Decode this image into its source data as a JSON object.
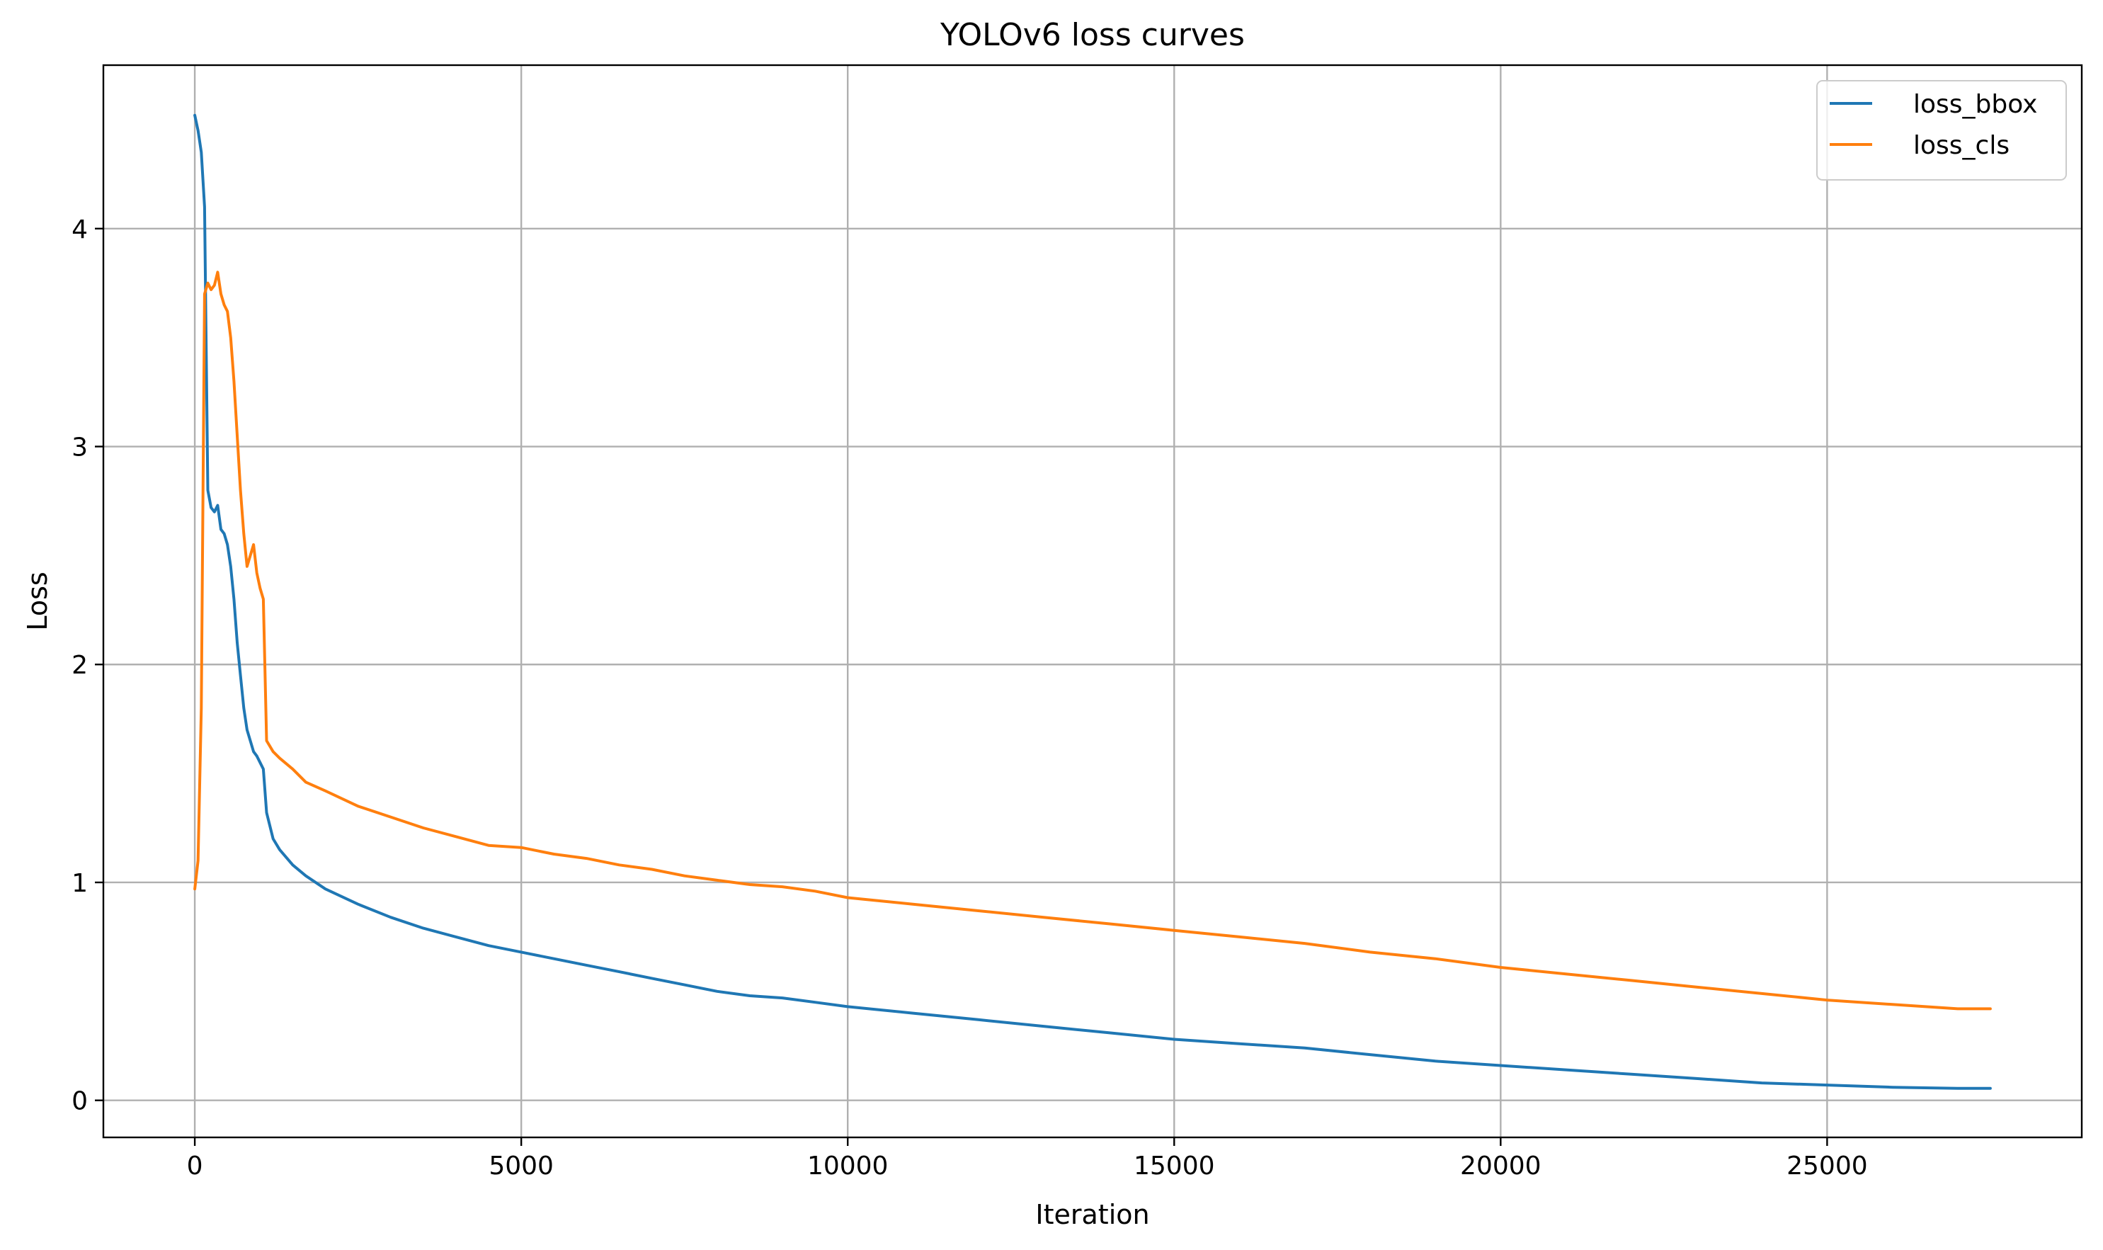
{
  "chart_data": {
    "type": "line",
    "title": "YOLOv6 loss curves",
    "xlabel": "Iteration",
    "ylabel": "Loss",
    "xlim": [
      -1400,
      28900
    ],
    "ylim": [
      -0.17,
      4.75
    ],
    "xticks": [
      0,
      5000,
      10000,
      15000,
      20000,
      25000
    ],
    "xtick_labels": [
      "0",
      "5000",
      "10000",
      "15000",
      "20000",
      "25000"
    ],
    "yticks": [
      0,
      1,
      2,
      3,
      4
    ],
    "ytick_labels": [
      "0",
      "1",
      "2",
      "3",
      "4"
    ],
    "grid": true,
    "legend_position": "top-right",
    "series": [
      {
        "name": "loss_bbox",
        "color": "#1f77b4",
        "x": [
          0,
          50,
          100,
          150,
          200,
          250,
          300,
          350,
          400,
          450,
          500,
          550,
          600,
          650,
          700,
          750,
          800,
          850,
          900,
          950,
          1000,
          1050,
          1100,
          1200,
          1300,
          1500,
          1700,
          2000,
          2500,
          3000,
          3500,
          4000,
          4500,
          5000,
          5500,
          6000,
          6500,
          7000,
          7500,
          8000,
          8500,
          9000,
          9500,
          10000,
          11000,
          12000,
          13000,
          14000,
          15000,
          16000,
          17000,
          18000,
          19000,
          20000,
          21000,
          22000,
          23000,
          24000,
          25000,
          26000,
          27000,
          27500
        ],
        "y": [
          4.52,
          4.45,
          4.35,
          4.1,
          2.8,
          2.72,
          2.7,
          2.73,
          2.62,
          2.6,
          2.55,
          2.45,
          2.3,
          2.1,
          1.95,
          1.8,
          1.7,
          1.65,
          1.6,
          1.58,
          1.55,
          1.52,
          1.32,
          1.2,
          1.15,
          1.08,
          1.03,
          0.97,
          0.9,
          0.84,
          0.79,
          0.75,
          0.71,
          0.68,
          0.65,
          0.62,
          0.59,
          0.56,
          0.53,
          0.5,
          0.48,
          0.47,
          0.45,
          0.43,
          0.4,
          0.37,
          0.34,
          0.31,
          0.28,
          0.26,
          0.24,
          0.21,
          0.18,
          0.16,
          0.14,
          0.12,
          0.1,
          0.08,
          0.07,
          0.06,
          0.055,
          0.055
        ]
      },
      {
        "name": "loss_cls",
        "color": "#ff7f0e",
        "x": [
          0,
          50,
          100,
          150,
          200,
          250,
          300,
          350,
          400,
          450,
          500,
          550,
          600,
          650,
          700,
          750,
          800,
          850,
          900,
          950,
          1000,
          1050,
          1100,
          1200,
          1300,
          1500,
          1700,
          2000,
          2500,
          3000,
          3500,
          4000,
          4500,
          5000,
          5500,
          6000,
          6500,
          7000,
          7500,
          8000,
          8500,
          9000,
          9500,
          10000,
          11000,
          12000,
          13000,
          14000,
          15000,
          16000,
          17000,
          18000,
          19000,
          20000,
          21000,
          22000,
          23000,
          24000,
          25000,
          26000,
          27000,
          27500
        ],
        "y": [
          0.97,
          1.1,
          1.8,
          3.7,
          3.75,
          3.72,
          3.74,
          3.8,
          3.7,
          3.65,
          3.62,
          3.5,
          3.3,
          3.05,
          2.8,
          2.6,
          2.45,
          2.5,
          2.55,
          2.42,
          2.35,
          2.3,
          1.65,
          1.6,
          1.57,
          1.52,
          1.46,
          1.42,
          1.35,
          1.3,
          1.25,
          1.21,
          1.17,
          1.16,
          1.13,
          1.11,
          1.08,
          1.06,
          1.03,
          1.01,
          0.99,
          0.98,
          0.96,
          0.93,
          0.9,
          0.87,
          0.84,
          0.81,
          0.78,
          0.75,
          0.72,
          0.68,
          0.65,
          0.61,
          0.58,
          0.55,
          0.52,
          0.49,
          0.46,
          0.44,
          0.42,
          0.42
        ]
      }
    ]
  }
}
